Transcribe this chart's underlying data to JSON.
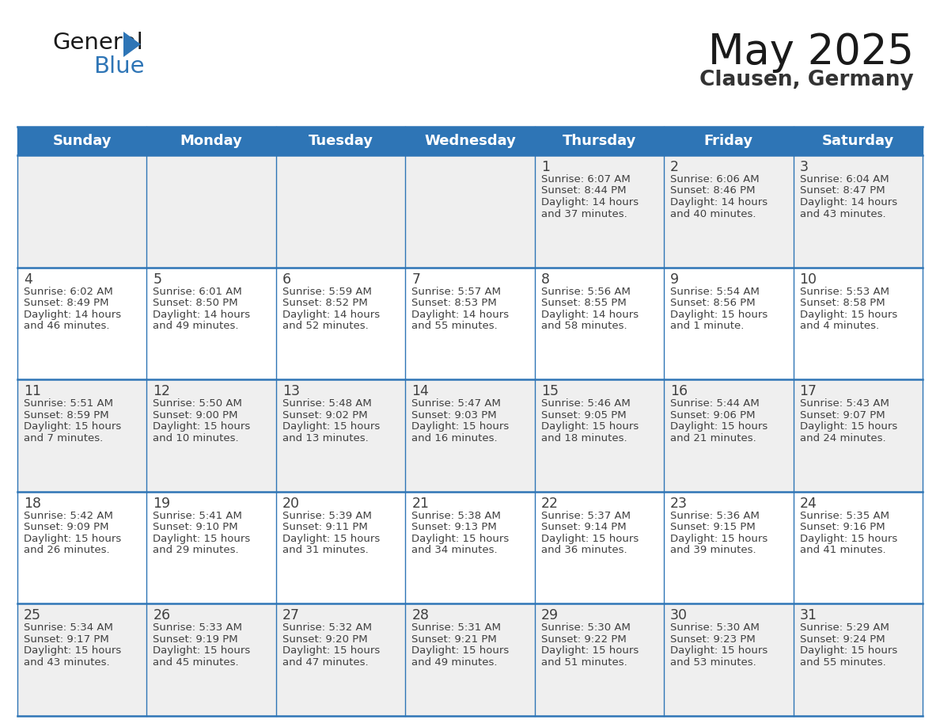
{
  "title": "May 2025",
  "subtitle": "Clausen, Germany",
  "header_bg": "#2E75B6",
  "header_text_color": "#FFFFFF",
  "day_names": [
    "Sunday",
    "Monday",
    "Tuesday",
    "Wednesday",
    "Thursday",
    "Friday",
    "Saturday"
  ],
  "cell_bg_odd": "#EFEFEF",
  "cell_bg_even": "#FFFFFF",
  "grid_color": "#2E75B6",
  "text_color": "#404040",
  "title_color": "#1a1a1a",
  "subtitle_color": "#333333",
  "logo_general_color": "#1a1a1a",
  "logo_blue_color": "#2E75B6",
  "logo_triangle_color": "#2E75B6",
  "calendar": [
    [
      null,
      null,
      null,
      null,
      {
        "day": 1,
        "sunrise": "6:07 AM",
        "sunset": "8:44 PM",
        "daylight": "14 hours\nand 37 minutes."
      },
      {
        "day": 2,
        "sunrise": "6:06 AM",
        "sunset": "8:46 PM",
        "daylight": "14 hours\nand 40 minutes."
      },
      {
        "day": 3,
        "sunrise": "6:04 AM",
        "sunset": "8:47 PM",
        "daylight": "14 hours\nand 43 minutes."
      }
    ],
    [
      {
        "day": 4,
        "sunrise": "6:02 AM",
        "sunset": "8:49 PM",
        "daylight": "14 hours\nand 46 minutes."
      },
      {
        "day": 5,
        "sunrise": "6:01 AM",
        "sunset": "8:50 PM",
        "daylight": "14 hours\nand 49 minutes."
      },
      {
        "day": 6,
        "sunrise": "5:59 AM",
        "sunset": "8:52 PM",
        "daylight": "14 hours\nand 52 minutes."
      },
      {
        "day": 7,
        "sunrise": "5:57 AM",
        "sunset": "8:53 PM",
        "daylight": "14 hours\nand 55 minutes."
      },
      {
        "day": 8,
        "sunrise": "5:56 AM",
        "sunset": "8:55 PM",
        "daylight": "14 hours\nand 58 minutes."
      },
      {
        "day": 9,
        "sunrise": "5:54 AM",
        "sunset": "8:56 PM",
        "daylight": "15 hours\nand 1 minute."
      },
      {
        "day": 10,
        "sunrise": "5:53 AM",
        "sunset": "8:58 PM",
        "daylight": "15 hours\nand 4 minutes."
      }
    ],
    [
      {
        "day": 11,
        "sunrise": "5:51 AM",
        "sunset": "8:59 PM",
        "daylight": "15 hours\nand 7 minutes."
      },
      {
        "day": 12,
        "sunrise": "5:50 AM",
        "sunset": "9:00 PM",
        "daylight": "15 hours\nand 10 minutes."
      },
      {
        "day": 13,
        "sunrise": "5:48 AM",
        "sunset": "9:02 PM",
        "daylight": "15 hours\nand 13 minutes."
      },
      {
        "day": 14,
        "sunrise": "5:47 AM",
        "sunset": "9:03 PM",
        "daylight": "15 hours\nand 16 minutes."
      },
      {
        "day": 15,
        "sunrise": "5:46 AM",
        "sunset": "9:05 PM",
        "daylight": "15 hours\nand 18 minutes."
      },
      {
        "day": 16,
        "sunrise": "5:44 AM",
        "sunset": "9:06 PM",
        "daylight": "15 hours\nand 21 minutes."
      },
      {
        "day": 17,
        "sunrise": "5:43 AM",
        "sunset": "9:07 PM",
        "daylight": "15 hours\nand 24 minutes."
      }
    ],
    [
      {
        "day": 18,
        "sunrise": "5:42 AM",
        "sunset": "9:09 PM",
        "daylight": "15 hours\nand 26 minutes."
      },
      {
        "day": 19,
        "sunrise": "5:41 AM",
        "sunset": "9:10 PM",
        "daylight": "15 hours\nand 29 minutes."
      },
      {
        "day": 20,
        "sunrise": "5:39 AM",
        "sunset": "9:11 PM",
        "daylight": "15 hours\nand 31 minutes."
      },
      {
        "day": 21,
        "sunrise": "5:38 AM",
        "sunset": "9:13 PM",
        "daylight": "15 hours\nand 34 minutes."
      },
      {
        "day": 22,
        "sunrise": "5:37 AM",
        "sunset": "9:14 PM",
        "daylight": "15 hours\nand 36 minutes."
      },
      {
        "day": 23,
        "sunrise": "5:36 AM",
        "sunset": "9:15 PM",
        "daylight": "15 hours\nand 39 minutes."
      },
      {
        "day": 24,
        "sunrise": "5:35 AM",
        "sunset": "9:16 PM",
        "daylight": "15 hours\nand 41 minutes."
      }
    ],
    [
      {
        "day": 25,
        "sunrise": "5:34 AM",
        "sunset": "9:17 PM",
        "daylight": "15 hours\nand 43 minutes."
      },
      {
        "day": 26,
        "sunrise": "5:33 AM",
        "sunset": "9:19 PM",
        "daylight": "15 hours\nand 45 minutes."
      },
      {
        "day": 27,
        "sunrise": "5:32 AM",
        "sunset": "9:20 PM",
        "daylight": "15 hours\nand 47 minutes."
      },
      {
        "day": 28,
        "sunrise": "5:31 AM",
        "sunset": "9:21 PM",
        "daylight": "15 hours\nand 49 minutes."
      },
      {
        "day": 29,
        "sunrise": "5:30 AM",
        "sunset": "9:22 PM",
        "daylight": "15 hours\nand 51 minutes."
      },
      {
        "day": 30,
        "sunrise": "5:30 AM",
        "sunset": "9:23 PM",
        "daylight": "15 hours\nand 53 minutes."
      },
      {
        "day": 31,
        "sunrise": "5:29 AM",
        "sunset": "9:24 PM",
        "daylight": "15 hours\nand 55 minutes."
      }
    ]
  ]
}
